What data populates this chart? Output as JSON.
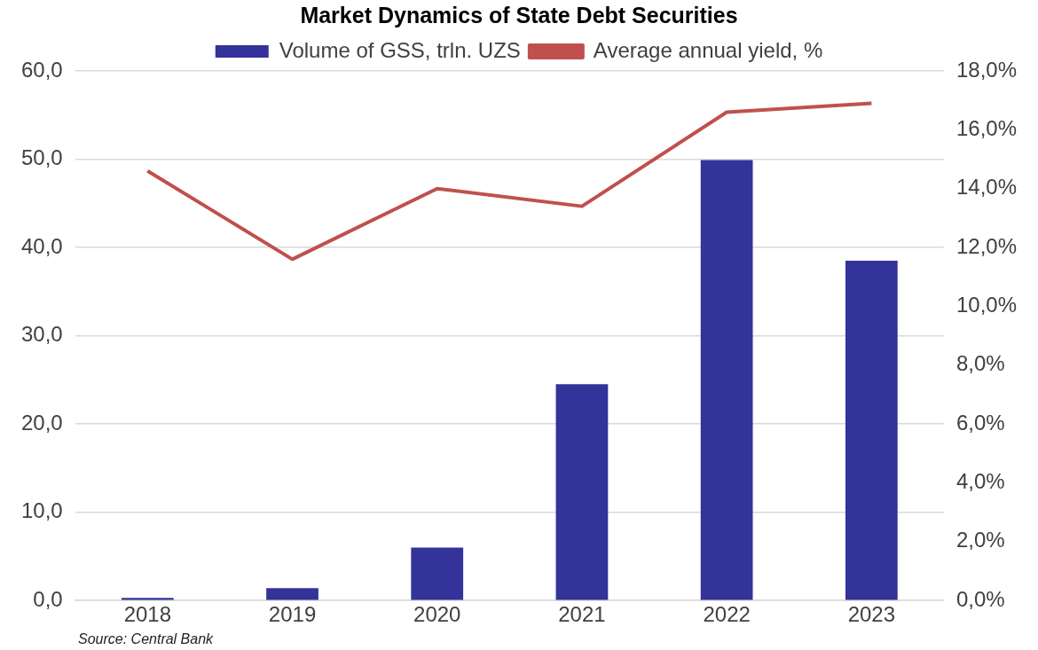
{
  "chart_data": {
    "type": "bar",
    "title": "Market Dynamics of State Debt Securities",
    "categories": [
      "2018",
      "2019",
      "2020",
      "2021",
      "2022",
      "2023"
    ],
    "series": [
      {
        "name": "Volume of GSS, trln. UZS",
        "color": "#333399",
        "values": [
          0.3,
          1.4,
          6.0,
          24.5,
          49.9,
          38.5
        ]
      },
      {
        "name": "Average annual yield, %",
        "type": "line",
        "axis": "y2",
        "color": "#c0504d",
        "values": [
          14.6,
          11.6,
          14.0,
          13.4,
          16.6,
          16.9
        ]
      }
    ],
    "ylim": [
      0,
      60
    ],
    "yticks": [
      {
        "value": 0,
        "label": "0,0"
      },
      {
        "value": 10,
        "label": "10,0"
      },
      {
        "value": 20,
        "label": "20,0"
      },
      {
        "value": 30,
        "label": "30,0"
      },
      {
        "value": 40,
        "label": "40,0"
      },
      {
        "value": 50,
        "label": "50,0"
      },
      {
        "value": 60,
        "label": "60,0"
      }
    ],
    "y2lim": [
      0,
      18
    ],
    "y2ticks": [
      {
        "value": 0,
        "label": "0,0%"
      },
      {
        "value": 2,
        "label": "2,0%"
      },
      {
        "value": 4,
        "label": "4,0%"
      },
      {
        "value": 6,
        "label": "6,0%"
      },
      {
        "value": 8,
        "label": "8,0%"
      },
      {
        "value": 10,
        "label": "10,0%"
      },
      {
        "value": 12,
        "label": "12,0%"
      },
      {
        "value": 14,
        "label": "14,0%"
      },
      {
        "value": 16,
        "label": "16,0%"
      },
      {
        "value": 18,
        "label": "18,0%"
      }
    ],
    "grid": "y",
    "legend": "top",
    "marker": "none",
    "line_style": "solid",
    "annotations": [
      "Source: Central Bank"
    ]
  }
}
